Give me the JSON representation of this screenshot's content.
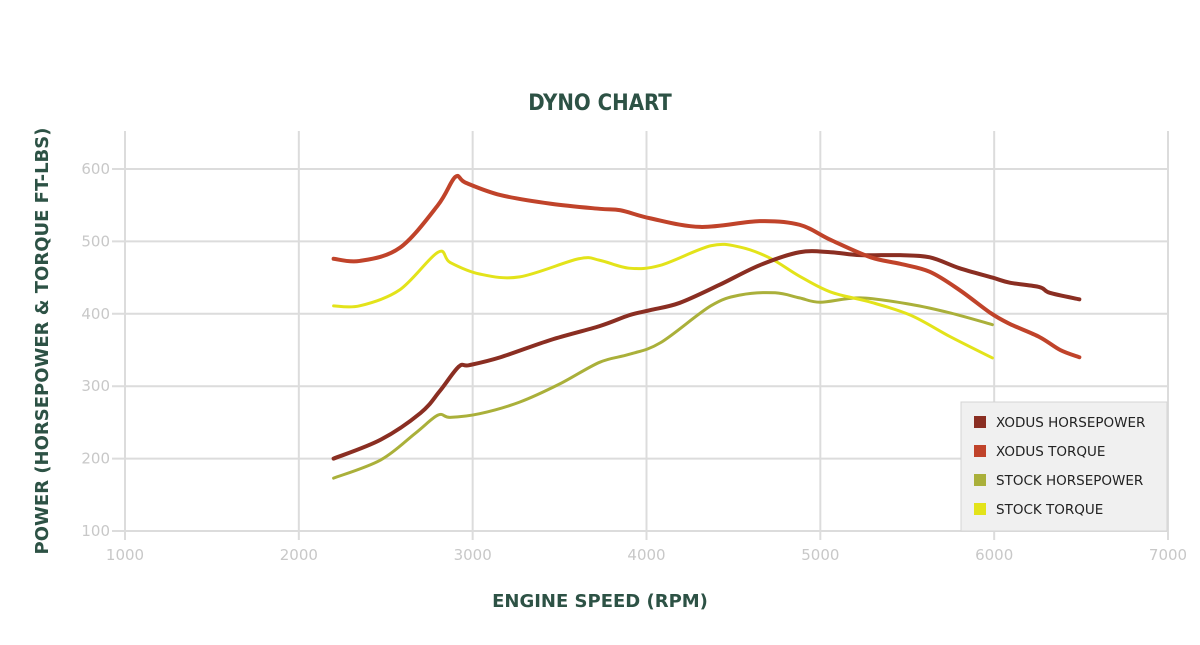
{
  "chart_data": {
    "type": "line",
    "title": "DYNO CHART",
    "xlabel": "ENGINE SPEED (RPM)",
    "ylabel": "POWER (HORSEPOWER & TORQUE FT-LBS)",
    "xlim": [
      1000,
      7000
    ],
    "ylim": [
      100,
      650
    ],
    "xticks": [
      1000,
      2000,
      3000,
      4000,
      5000,
      6000,
      7000
    ],
    "yticks": [
      100,
      200,
      300,
      400,
      500,
      600
    ],
    "grid": true,
    "legend_position": "bottom-right",
    "series": [
      {
        "name": "XODUS HORSEPOWER",
        "color": "#8a2e22",
        "x": [
          2200,
          2470,
          2700,
          2810,
          2920,
          2980,
          3160,
          3450,
          3730,
          3900,
          4020,
          4190,
          4420,
          4650,
          4880,
          5060,
          5230,
          5460,
          5630,
          5800,
          5990,
          6090,
          6260,
          6320,
          6490
        ],
        "y": [
          200,
          226,
          263,
          293,
          327,
          329,
          340,
          364,
          383,
          398,
          405,
          415,
          440,
          467,
          485,
          485,
          481,
          481,
          478,
          463,
          450,
          443,
          437,
          429,
          420
        ]
      },
      {
        "name": "XODUS TORQUE",
        "color": "#c0432a",
        "x": [
          2200,
          2350,
          2580,
          2800,
          2900,
          2960,
          3160,
          3450,
          3730,
          3850,
          4020,
          4310,
          4650,
          4880,
          5060,
          5290,
          5460,
          5630,
          5800,
          5980,
          6090,
          6260,
          6380,
          6490
        ],
        "y": [
          476,
          473,
          491,
          550,
          589,
          581,
          564,
          552,
          545,
          543,
          532,
          520,
          528,
          523,
          502,
          478,
          469,
          458,
          433,
          401,
          386,
          368,
          350,
          340
        ]
      },
      {
        "name": "STOCK HORSEPOWER",
        "color": "#aab03a",
        "x": [
          2200,
          2470,
          2670,
          2800,
          2870,
          3040,
          3270,
          3500,
          3730,
          3900,
          4080,
          4370,
          4540,
          4740,
          4880,
          5000,
          5230,
          5520,
          5750,
          5990
        ],
        "y": [
          173,
          198,
          235,
          260,
          257,
          262,
          278,
          303,
          333,
          344,
          360,
          411,
          426,
          429,
          422,
          416,
          422,
          413,
          401,
          385
        ]
      },
      {
        "name": "STOCK TORQUE",
        "color": "#e3e31a",
        "x": [
          2200,
          2350,
          2580,
          2800,
          2870,
          3040,
          3270,
          3610,
          3730,
          3900,
          4080,
          4370,
          4540,
          4710,
          4880,
          5060,
          5290,
          5520,
          5750,
          5990
        ],
        "y": [
          411,
          411,
          433,
          485,
          471,
          455,
          451,
          476,
          474,
          463,
          467,
          494,
          492,
          477,
          452,
          430,
          416,
          398,
          368,
          339
        ]
      }
    ]
  }
}
